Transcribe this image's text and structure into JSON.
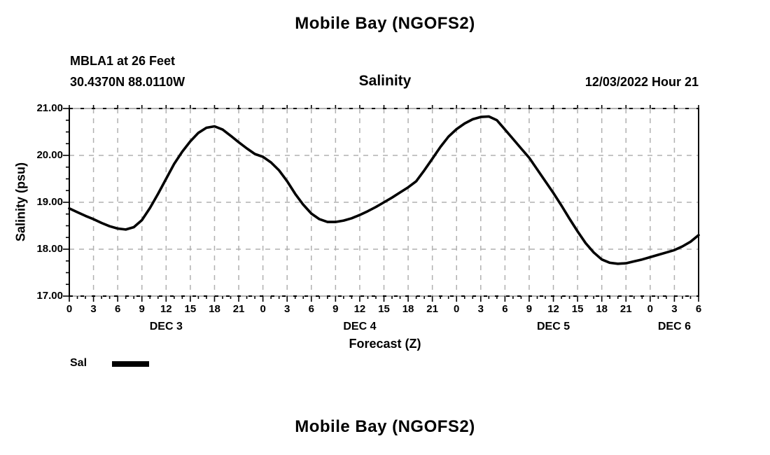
{
  "page": {
    "title": "Mobile Bay (NGOFS2)",
    "subtitle": "Salinity",
    "station_name_depth": "MBLA1 at 26 Feet",
    "station_coordinates": "30.4370N  88.0110W",
    "datetime_label": "12/03/2022 Hour 21",
    "second_chart_title": "Mobile Bay (NGOFS2)"
  },
  "chart_data": {
    "type": "line",
    "title": "Mobile Bay (NGOFS2)",
    "subtitle": "Salinity",
    "xlabel": "Forecast (Z)",
    "ylabel": "Salinity (psu)",
    "legend": {
      "label": "Sal",
      "color": "#000000",
      "position": "bottom-left"
    },
    "grid": true,
    "grid_color": "#b0b0b0",
    "line_color": "#000000",
    "x_range_hours": [
      0,
      78
    ],
    "ylim": [
      17.0,
      21.0
    ],
    "yticks": [
      17,
      18,
      19,
      20,
      21
    ],
    "ytick_labels": [
      "17.00",
      "18.00",
      "19.00",
      "20.00",
      "21.00"
    ],
    "ytick_minor_step": 0.25,
    "xtick_step_hours": 3,
    "xtick_minor_step_hours": 1,
    "xtick_labels": [
      "0",
      "3",
      "6",
      "9",
      "12",
      "15",
      "18",
      "21",
      "0",
      "3",
      "6",
      "9",
      "12",
      "15",
      "18",
      "21",
      "0",
      "3",
      "6",
      "9",
      "12",
      "15",
      "18",
      "21",
      "0",
      "3",
      "6"
    ],
    "day_labels": [
      {
        "label": "DEC 3",
        "hour": 12
      },
      {
        "label": "DEC 4",
        "hour": 36
      },
      {
        "label": "DEC 5",
        "hour": 60
      },
      {
        "label": "DEC 6",
        "hour": 75
      }
    ],
    "x_hours": [
      0,
      1,
      2,
      3,
      4,
      5,
      6,
      7,
      8,
      9,
      10,
      11,
      12,
      13,
      14,
      15,
      16,
      17,
      18,
      19,
      20,
      21,
      22,
      23,
      24,
      25,
      26,
      27,
      28,
      29,
      30,
      31,
      32,
      33,
      34,
      35,
      36,
      37,
      38,
      39,
      40,
      41,
      42,
      43,
      44,
      45,
      46,
      47,
      48,
      49,
      50,
      51,
      52,
      53,
      54,
      55,
      56,
      57,
      58,
      59,
      60,
      61,
      62,
      63,
      64,
      65,
      66,
      67,
      68,
      69,
      70,
      71,
      72,
      73,
      74,
      75,
      76,
      77,
      78
    ],
    "series": [
      {
        "name": "Sal",
        "color": "#000000",
        "values": [
          18.87,
          18.79,
          18.71,
          18.64,
          18.56,
          18.49,
          18.44,
          18.42,
          18.47,
          18.62,
          18.88,
          19.18,
          19.5,
          19.82,
          20.08,
          20.3,
          20.48,
          20.59,
          20.62,
          20.55,
          20.42,
          20.28,
          20.15,
          20.03,
          19.97,
          19.85,
          19.68,
          19.45,
          19.18,
          18.95,
          18.76,
          18.64,
          18.58,
          18.58,
          18.61,
          18.66,
          18.73,
          18.81,
          18.9,
          19.0,
          19.1,
          19.21,
          19.32,
          19.45,
          19.68,
          19.93,
          20.18,
          20.4,
          20.56,
          20.68,
          20.77,
          20.82,
          20.83,
          20.75,
          20.55,
          20.35,
          20.15,
          19.95,
          19.7,
          19.45,
          19.2,
          18.93,
          18.65,
          18.38,
          18.13,
          17.93,
          17.78,
          17.71,
          17.69,
          17.7,
          17.74,
          17.78,
          17.83,
          17.88,
          17.93,
          17.98,
          18.06,
          18.16,
          18.3
        ]
      }
    ]
  }
}
